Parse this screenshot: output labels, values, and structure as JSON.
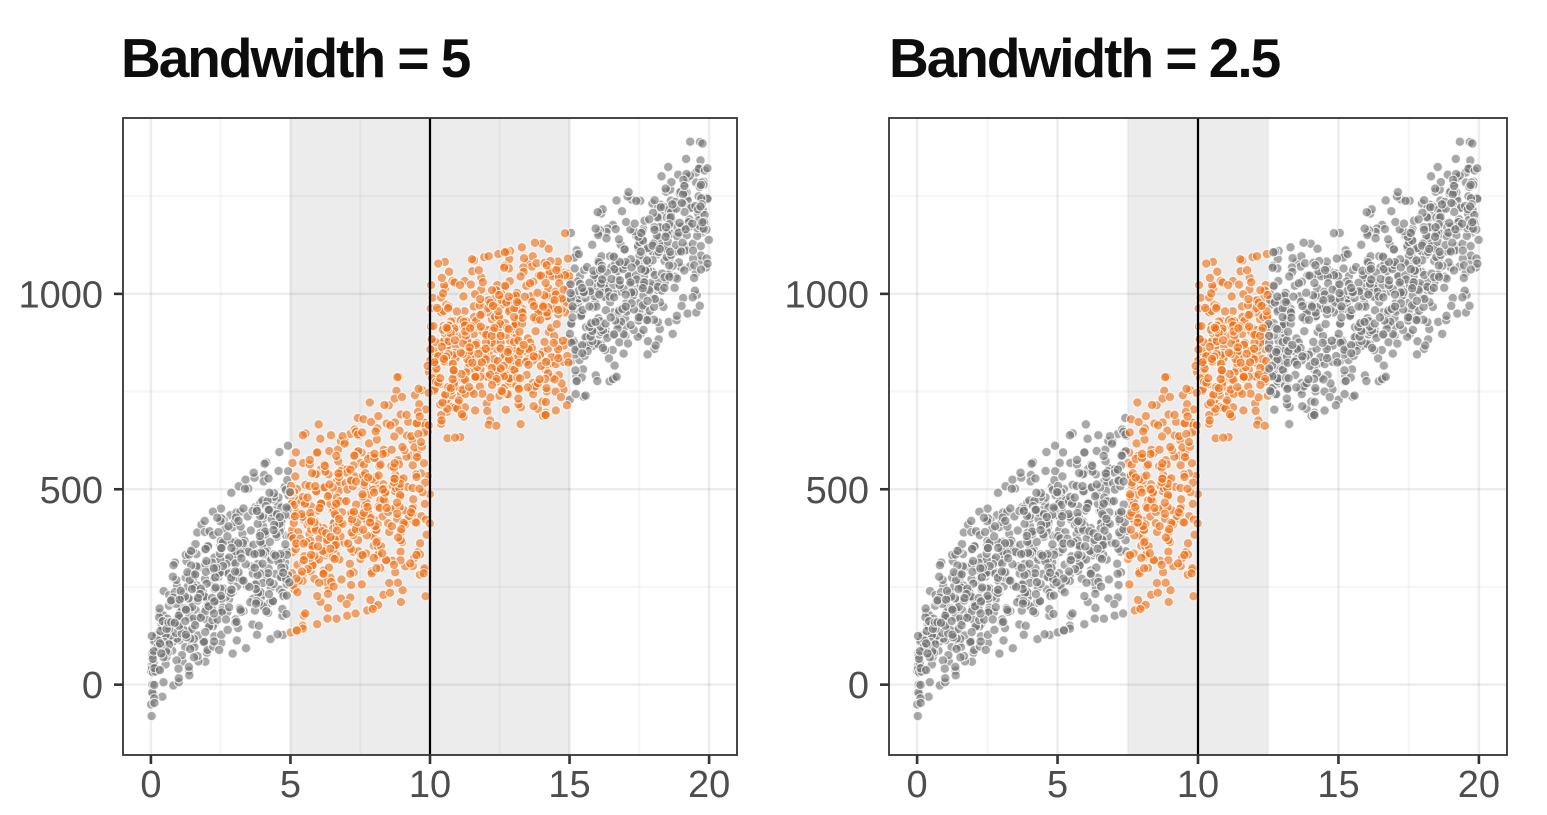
{
  "page": {
    "background": "#ffffff",
    "kind": "regression-discontinuity-bandwidth-comparison"
  },
  "chart_data": [
    {
      "type": "scatter",
      "title": "Bandwidth = 5",
      "bandwidth": 5,
      "cutoff": 10,
      "highlight_range": [
        5,
        15
      ],
      "x_ticks": [
        0,
        5,
        10,
        15,
        20
      ],
      "x_minor_ticks": [
        2.5,
        7.5,
        12.5,
        17.5
      ],
      "y_ticks": [
        0,
        500,
        1000
      ],
      "y_minor_ticks": [
        250,
        750,
        1250
      ],
      "xlim": [
        -1,
        21
      ],
      "ylim": [
        -180,
        1450
      ],
      "grid": true,
      "legend": false
    },
    {
      "type": "scatter",
      "title": "Bandwidth = 2.5",
      "bandwidth": 2.5,
      "cutoff": 10,
      "highlight_range": [
        7.5,
        12.5
      ],
      "x_ticks": [
        0,
        5,
        10,
        15,
        20
      ],
      "x_minor_ticks": [
        2.5,
        7.5,
        12.5,
        17.5
      ],
      "y_ticks": [
        0,
        500,
        1000
      ],
      "y_minor_ticks": [
        250,
        750,
        1250
      ],
      "xlim": [
        -1,
        21
      ],
      "ylim": [
        -180,
        1450
      ],
      "grid": true,
      "legend": false
    }
  ],
  "points_model": {
    "comment": "same simulated dataset shown in both panels; colored by |x-cutoff|<=bandwidth",
    "seed": 20,
    "n_points": 2100,
    "x_range": [
      0,
      20
    ],
    "cutoff": 10,
    "below_cutoff": {
      "shape": "sqrt",
      "amplitude": 530,
      "noise_floor": 45,
      "noise_slope": 95
    },
    "above_cutoff": {
      "shape": "quadratic",
      "intercept": 855,
      "quad_gain": 355,
      "noise_sd": 105
    },
    "noise_clamp_sigma": 2.15,
    "point_radius": 4.7
  },
  "style": {
    "inside_color": "#ee7118",
    "outside_color": "#737373",
    "point_fill_alpha": 0.62,
    "point_stroke": "#ffffff",
    "point_stroke_alpha": 0.78,
    "band_fill": "#000000",
    "band_alpha": 0.075,
    "cutoff_line_color": "#000000",
    "grid_major": "rgba(0,0,0,0.07)",
    "grid_minor": "rgba(0,0,0,0.035)",
    "panel_border": "#333333",
    "tick_color": "#333333",
    "tick_label_color": "#4d4d4d"
  }
}
